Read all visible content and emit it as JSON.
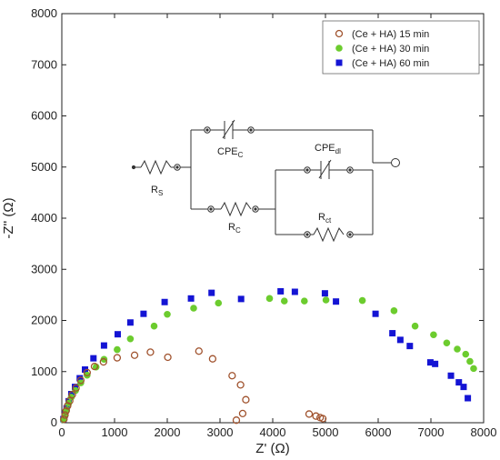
{
  "chart_data": {
    "type": "scatter",
    "xlabel": "Z' (Ω)",
    "ylabel": "-Z'' (Ω)",
    "xlim": [
      0,
      8000
    ],
    "ylim": [
      0,
      8000
    ],
    "xticks": [
      0,
      1000,
      2000,
      3000,
      4000,
      5000,
      6000,
      7000,
      8000
    ],
    "yticks": [
      0,
      1000,
      2000,
      3000,
      4000,
      5000,
      6000,
      7000,
      8000
    ],
    "grid": false,
    "legend_position": "top-right",
    "series": [
      {
        "name": "(Ce + HA) 15 min",
        "marker": "open-circle",
        "color": "#a0522d",
        "points": [
          [
            40,
            70
          ],
          [
            60,
            150
          ],
          [
            80,
            230
          ],
          [
            110,
            330
          ],
          [
            150,
            430
          ],
          [
            200,
            550
          ],
          [
            270,
            680
          ],
          [
            360,
            830
          ],
          [
            480,
            980
          ],
          [
            620,
            1100
          ],
          [
            790,
            1190
          ],
          [
            1050,
            1270
          ],
          [
            1380,
            1320
          ],
          [
            1680,
            1380
          ],
          [
            2010,
            1280
          ],
          [
            2600,
            1400
          ],
          [
            2860,
            1250
          ],
          [
            3230,
            920
          ],
          [
            3390,
            740
          ],
          [
            3490,
            450
          ],
          [
            3430,
            180
          ],
          [
            3310,
            50
          ],
          [
            4690,
            170
          ],
          [
            4820,
            130
          ],
          [
            4900,
            100
          ],
          [
            4950,
            80
          ]
        ]
      },
      {
        "name": "(Ce + HA) 30 min",
        "marker": "filled-circle",
        "color": "#6ccc2e",
        "points": [
          [
            30,
            60
          ],
          [
            60,
            140
          ],
          [
            90,
            250
          ],
          [
            130,
            380
          ],
          [
            180,
            500
          ],
          [
            260,
            630
          ],
          [
            360,
            780
          ],
          [
            480,
            930
          ],
          [
            650,
            1090
          ],
          [
            800,
            1240
          ],
          [
            1050,
            1430
          ],
          [
            1300,
            1640
          ],
          [
            1750,
            1890
          ],
          [
            2000,
            2120
          ],
          [
            2500,
            2240
          ],
          [
            2970,
            2340
          ],
          [
            3940,
            2430
          ],
          [
            4220,
            2380
          ],
          [
            4600,
            2380
          ],
          [
            5010,
            2400
          ],
          [
            5700,
            2390
          ],
          [
            6300,
            2190
          ],
          [
            6700,
            1890
          ],
          [
            7050,
            1720
          ],
          [
            7300,
            1560
          ],
          [
            7500,
            1440
          ],
          [
            7660,
            1340
          ],
          [
            7740,
            1200
          ],
          [
            7810,
            1060
          ]
        ]
      },
      {
        "name": "(Ce + HA) 60 min",
        "marker": "filled-square",
        "color": "#1414d4",
        "points": [
          [
            30,
            70
          ],
          [
            60,
            160
          ],
          [
            90,
            280
          ],
          [
            130,
            420
          ],
          [
            180,
            560
          ],
          [
            250,
            700
          ],
          [
            340,
            870
          ],
          [
            440,
            1040
          ],
          [
            600,
            1260
          ],
          [
            800,
            1510
          ],
          [
            1060,
            1730
          ],
          [
            1300,
            1960
          ],
          [
            1550,
            2130
          ],
          [
            1950,
            2360
          ],
          [
            2450,
            2430
          ],
          [
            2840,
            2540
          ],
          [
            3400,
            2420
          ],
          [
            4150,
            2570
          ],
          [
            4420,
            2560
          ],
          [
            4990,
            2530
          ],
          [
            5200,
            2370
          ],
          [
            5950,
            2130
          ],
          [
            6270,
            1750
          ],
          [
            6420,
            1620
          ],
          [
            6600,
            1500
          ],
          [
            6990,
            1180
          ],
          [
            7080,
            1150
          ],
          [
            7380,
            920
          ],
          [
            7530,
            790
          ],
          [
            7620,
            700
          ],
          [
            7700,
            480
          ]
        ]
      }
    ]
  },
  "inset_circuit": {
    "labels": {
      "rs": "R",
      "rs_sub": "S",
      "cpec": "CPE",
      "cpec_sub": "C",
      "rc": "R",
      "rc_sub": "C",
      "cpedl": "CPE",
      "cpedl_sub": "dl",
      "rct": "R",
      "rct_sub": "ct"
    }
  }
}
